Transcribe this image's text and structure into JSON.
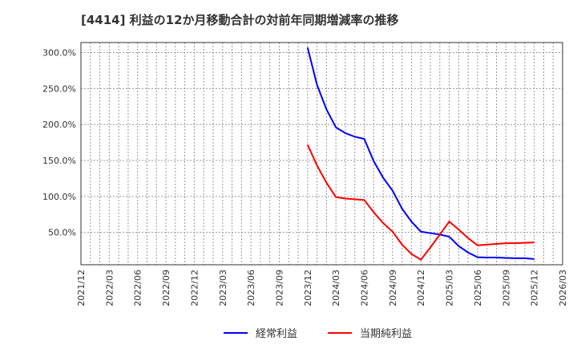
{
  "chart_data": {
    "type": "line",
    "title": "[4414]  利益の12か月移動合計の対前年同期増減率の推移",
    "xlabel": "",
    "ylabel": "",
    "ylim": [
      5,
      314
    ],
    "yticks": [
      50,
      100,
      150,
      200,
      250,
      300
    ],
    "ytick_labels": [
      "50.0%",
      "100.0%",
      "150.0%",
      "200.0%",
      "250.0%",
      "300.0%"
    ],
    "xtick_labels": [
      "2021/12",
      "2022/03",
      "2022/06",
      "2022/09",
      "2022/12",
      "2023/03",
      "2023/06",
      "2023/09",
      "2023/12",
      "2024/03",
      "2024/06",
      "2024/09",
      "2024/12",
      "2025/03",
      "2025/06",
      "2025/09",
      "2025/12",
      "2026/03"
    ],
    "x_start": "2021/12",
    "grid": true,
    "legend_position": "bottom",
    "series": [
      {
        "name": "経常利益",
        "color": "#0000ff",
        "start_month_index": 24,
        "values": [
          307,
          255,
          221,
          196,
          188,
          183,
          180,
          149,
          126,
          108,
          83,
          65,
          51,
          49,
          47,
          44,
          31,
          22,
          15.5,
          15,
          15,
          14.5,
          14,
          14,
          13
        ]
      },
      {
        "name": "当期純利益",
        "color": "#ff0000",
        "start_month_index": 24,
        "values": [
          172,
          143,
          119,
          99,
          97,
          96,
          95,
          78,
          63,
          51,
          33,
          20,
          12,
          29,
          47,
          65,
          54,
          42,
          32,
          33,
          34,
          35,
          35,
          35.5,
          36
        ]
      }
    ]
  }
}
